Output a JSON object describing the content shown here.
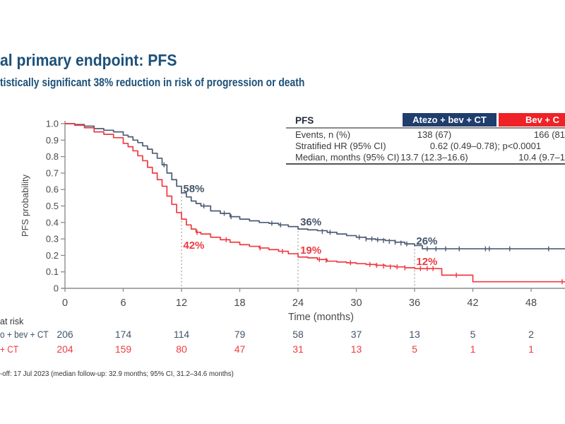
{
  "page": {
    "title": "al primary endpoint: PFS",
    "subtitle": "tistically significant 38% reduction in risk of progression or death",
    "footnote": "-off: 17 Jul 2023 (median follow-up: 32.9 months; 95% CI, 31.2–34.6 months)"
  },
  "colors": {
    "brand_navy": "#1d5078",
    "table_navy": "#1f3d6d",
    "table_red": "#ee2227",
    "curve_blue": "#4b5b74",
    "curve_red": "#ef3a40",
    "anno_blue": "#445469",
    "axis_gray": "#8c8c8c",
    "tick_gray": "#4a4a4a"
  },
  "results_table": {
    "title": "PFS",
    "columns": [
      {
        "label": "Atezo + bev + CT"
      },
      {
        "label": "Bev + C"
      }
    ],
    "rows": [
      {
        "label": "Events, n (%)",
        "atezo": "138 (67)",
        "bev": "166 (81"
      },
      {
        "label": "Stratified HR (95% CI)",
        "combined": "0.62 (0.49–0.78); p<0.0001"
      },
      {
        "label": "Median, months (95% CI)",
        "atezo": "13.7 (12.3–16.6)",
        "bev": "10.4 (9.7–1"
      }
    ]
  },
  "chart_data": {
    "type": "line",
    "subtype": "kaplan-meier-step",
    "title": "",
    "xlabel": "Time (months)",
    "ylabel": "PFS probability",
    "xlim": [
      0,
      51.5
    ],
    "ylim": [
      0,
      1.0
    ],
    "xticks": [
      0,
      6,
      12,
      18,
      24,
      30,
      36,
      42,
      48
    ],
    "ytick_labels": [
      "0",
      "0.1",
      "0.2",
      "0.3",
      "0.4",
      "0.5",
      "0.6",
      "0.7",
      "0.8",
      "0.9",
      "1.0"
    ],
    "grid": false,
    "legend_position": "none",
    "series": [
      {
        "name": "Atezo + bev + CT",
        "color_key": "curve_blue",
        "points": [
          [
            0,
            1.0
          ],
          [
            1,
            0.995
          ],
          [
            2,
            0.985
          ],
          [
            3,
            0.97
          ],
          [
            4,
            0.96
          ],
          [
            5,
            0.95
          ],
          [
            6,
            0.93
          ],
          [
            6.5,
            0.92
          ],
          [
            7,
            0.9
          ],
          [
            7.5,
            0.885
          ],
          [
            8,
            0.865
          ],
          [
            8.5,
            0.845
          ],
          [
            9,
            0.82
          ],
          [
            9.5,
            0.79
          ],
          [
            10,
            0.75
          ],
          [
            10.5,
            0.7
          ],
          [
            11,
            0.66
          ],
          [
            11.5,
            0.62
          ],
          [
            12,
            0.58
          ],
          [
            12.5,
            0.555
          ],
          [
            13,
            0.53
          ],
          [
            13.5,
            0.515
          ],
          [
            14,
            0.5
          ],
          [
            15,
            0.47
          ],
          [
            16,
            0.455
          ],
          [
            17,
            0.435
          ],
          [
            18,
            0.42
          ],
          [
            19,
            0.41
          ],
          [
            20,
            0.4
          ],
          [
            21,
            0.395
          ],
          [
            22,
            0.385
          ],
          [
            23,
            0.375
          ],
          [
            24,
            0.36
          ],
          [
            25,
            0.355
          ],
          [
            26,
            0.35
          ],
          [
            27,
            0.34
          ],
          [
            28,
            0.33
          ],
          [
            29,
            0.32
          ],
          [
            30,
            0.31
          ],
          [
            31,
            0.3
          ],
          [
            32,
            0.295
          ],
          [
            33,
            0.29
          ],
          [
            34,
            0.28
          ],
          [
            35,
            0.27
          ],
          [
            36,
            0.26
          ],
          [
            36.8,
            0.24
          ],
          [
            51.5,
            0.24
          ]
        ],
        "censor_marks": [
          [
            10.2,
            0.75
          ],
          [
            14.3,
            0.5
          ],
          [
            16.4,
            0.455
          ],
          [
            17.1,
            0.435
          ],
          [
            21.3,
            0.395
          ],
          [
            22.2,
            0.385
          ],
          [
            26.5,
            0.345
          ],
          [
            27.3,
            0.34
          ],
          [
            30.3,
            0.31
          ],
          [
            31,
            0.3
          ],
          [
            31.6,
            0.3
          ],
          [
            32.2,
            0.295
          ],
          [
            32.8,
            0.29
          ],
          [
            33.4,
            0.285
          ],
          [
            34,
            0.28
          ],
          [
            34.6,
            0.275
          ],
          [
            35.2,
            0.27
          ],
          [
            37.3,
            0.24
          ],
          [
            38.2,
            0.24
          ],
          [
            39.2,
            0.24
          ],
          [
            40.6,
            0.24
          ],
          [
            43.3,
            0.24
          ],
          [
            43.7,
            0.24
          ],
          [
            45.8,
            0.24
          ],
          [
            49.8,
            0.24
          ]
        ]
      },
      {
        "name": "Bev + CT",
        "color_key": "curve_red",
        "points": [
          [
            0,
            1.0
          ],
          [
            1,
            0.99
          ],
          [
            2,
            0.975
          ],
          [
            3,
            0.95
          ],
          [
            4,
            0.935
          ],
          [
            5,
            0.915
          ],
          [
            6,
            0.88
          ],
          [
            6.5,
            0.86
          ],
          [
            7,
            0.835
          ],
          [
            7.5,
            0.805
          ],
          [
            8,
            0.775
          ],
          [
            8.5,
            0.735
          ],
          [
            9,
            0.7
          ],
          [
            9.5,
            0.66
          ],
          [
            10,
            0.62
          ],
          [
            10.5,
            0.56
          ],
          [
            11,
            0.51
          ],
          [
            11.5,
            0.46
          ],
          [
            12,
            0.42
          ],
          [
            12.5,
            0.385
          ],
          [
            13,
            0.36
          ],
          [
            13.5,
            0.34
          ],
          [
            14,
            0.33
          ],
          [
            15,
            0.31
          ],
          [
            16,
            0.295
          ],
          [
            17,
            0.28
          ],
          [
            18,
            0.265
          ],
          [
            19,
            0.255
          ],
          [
            20,
            0.245
          ],
          [
            21,
            0.235
          ],
          [
            22,
            0.225
          ],
          [
            23,
            0.21
          ],
          [
            24,
            0.19
          ],
          [
            25,
            0.185
          ],
          [
            26,
            0.175
          ],
          [
            27,
            0.165
          ],
          [
            28,
            0.16
          ],
          [
            29,
            0.155
          ],
          [
            30,
            0.15
          ],
          [
            31,
            0.145
          ],
          [
            32,
            0.14
          ],
          [
            33,
            0.135
          ],
          [
            34,
            0.13
          ],
          [
            35,
            0.125
          ],
          [
            36,
            0.12
          ],
          [
            38.8,
            0.08
          ],
          [
            42,
            0.04
          ],
          [
            51.5,
            0.04
          ]
        ],
        "censor_marks": [
          [
            13.6,
            0.34
          ],
          [
            16.6,
            0.295
          ],
          [
            20.1,
            0.245
          ],
          [
            22.4,
            0.225
          ],
          [
            26.2,
            0.175
          ],
          [
            26.9,
            0.17
          ],
          [
            29.4,
            0.155
          ],
          [
            31.4,
            0.145
          ],
          [
            32.1,
            0.14
          ],
          [
            32.8,
            0.135
          ],
          [
            33.5,
            0.13
          ],
          [
            34.2,
            0.13
          ],
          [
            35,
            0.125
          ],
          [
            36.6,
            0.12
          ],
          [
            37.3,
            0.12
          ],
          [
            37.9,
            0.12
          ],
          [
            40.3,
            0.08
          ],
          [
            51.2,
            0.04
          ]
        ]
      }
    ],
    "annotations": [
      {
        "text": "58%",
        "t": 12.1,
        "p_baseline": 0.584,
        "color_key": "anno_blue"
      },
      {
        "text": "42%",
        "t": 12.1,
        "p_baseline": 0.24,
        "color_key": "curve_red"
      },
      {
        "text": "36%",
        "t": 24.15,
        "p_baseline": 0.382,
        "color_key": "anno_blue"
      },
      {
        "text": "19%",
        "t": 24.15,
        "p_baseline": 0.21,
        "color_key": "curve_red"
      },
      {
        "text": "26%",
        "t": 36.1,
        "p_baseline": 0.266,
        "color_key": "anno_blue"
      },
      {
        "text": "12%",
        "t": 36.1,
        "p_baseline": 0.142,
        "color_key": "curve_red"
      }
    ],
    "dotted_reference_lines": [
      {
        "t": 12,
        "p_top": 0.58
      },
      {
        "t": 24,
        "p_top": 0.37
      },
      {
        "t": 36,
        "p_top": 0.26
      }
    ]
  },
  "at_risk": {
    "title": "at risk",
    "times": [
      0,
      6,
      12,
      18,
      24,
      30,
      36,
      42,
      48
    ],
    "rows": [
      {
        "label": "o + bev + CT",
        "color_key": "anno_blue",
        "values": [
          206,
          174,
          114,
          79,
          58,
          37,
          13,
          5,
          2
        ]
      },
      {
        "label": "+ CT",
        "color_key": "curve_red",
        "values": [
          204,
          159,
          80,
          47,
          31,
          13,
          5,
          1,
          1
        ]
      }
    ]
  }
}
